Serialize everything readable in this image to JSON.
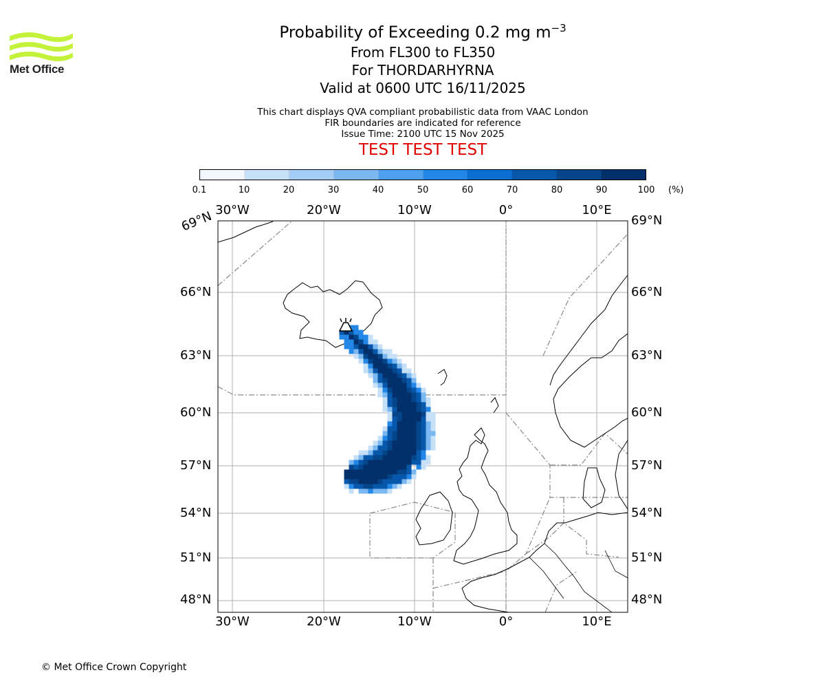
{
  "logo": {
    "text": "Met Office"
  },
  "header": {
    "title_prefix": "Probability of Exceeding 0.2 mg m",
    "title_exponent": "−3",
    "subtitle_levels": "From FL300 to FL350",
    "subtitle_volcano": "For THORDARHYRNA",
    "subtitle_valid": "Valid at 0600 UTC 16/11/2025",
    "desc_line1": "This chart displays QVA compliant probabilistic data from VAAC London",
    "desc_line2": "FIR boundaries are indicated for reference",
    "desc_line3": "Issue Time: 2100 UTC 15 Nov 2025",
    "test_banner": "TEST TEST TEST"
  },
  "colorbar": {
    "ticks": [
      "0.1",
      "10",
      "20",
      "30",
      "40",
      "50",
      "60",
      "70",
      "80",
      "90",
      "100"
    ],
    "unit": "(%)",
    "colors": [
      "#f2f7fd",
      "#c6e0f8",
      "#a3cdf5",
      "#7bb8f1",
      "#4ea0ee",
      "#2387e8",
      "#0b6fd2",
      "#0757aa",
      "#05458a",
      "#03306a"
    ]
  },
  "map": {
    "lon_labels": [
      "30°W",
      "20°W",
      "10°W",
      "0°",
      "10°E"
    ],
    "lat_labels_left": [
      "69°N",
      "66°N",
      "63°N",
      "60°N",
      "57°N",
      "54°N",
      "51°N",
      "48°N"
    ],
    "lat_labels_right": [
      "69°N",
      "66°N",
      "63°N",
      "60°N",
      "57°N",
      "54°N",
      "51°N",
      "48°N"
    ]
  },
  "footer": {
    "copyright": "© Met Office Crown Copyright"
  }
}
